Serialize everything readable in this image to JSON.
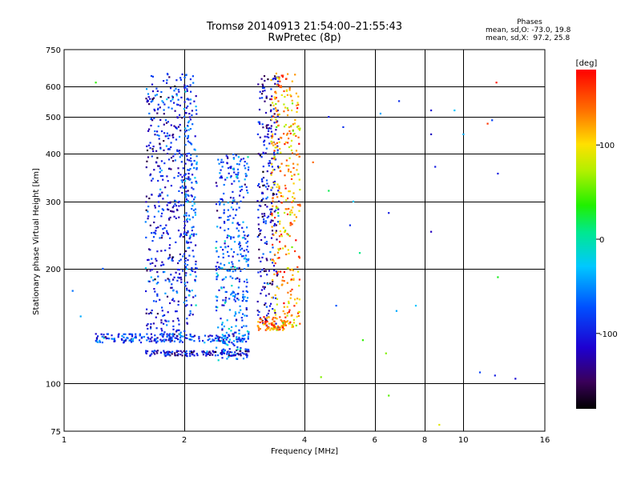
{
  "header": {
    "title": "Tromsø 20140913 21:54:00–21:55:43",
    "subtitle": "RwPretec (8p)"
  },
  "phase_info": {
    "heading": "Phases",
    "line1": "mean, sd,O: -73.0, 19.8",
    "line2": "mean, sd,X:  97.2, 25.8"
  },
  "colorbar": {
    "label": "[deg]",
    "tick_labels": [
      "100",
      "0",
      "-100"
    ],
    "range": [
      -180,
      180
    ]
  },
  "chart_data": {
    "type": "scatter",
    "title": "Tromsø 20140913 21:54:00–21:55:43",
    "subtitle": "RwPretec (8p)",
    "xlabel": "Frequency [MHz]",
    "ylabel": "Stationary phase Virtual Height [km]",
    "x_scale": "log",
    "y_scale": "log",
    "xlim": [
      1,
      16
    ],
    "ylim": [
      75,
      750
    ],
    "x_ticks": [
      1,
      2,
      4,
      6,
      8,
      10,
      16
    ],
    "y_ticks": [
      75,
      100,
      200,
      300,
      400,
      500,
      600,
      750
    ],
    "grid": true,
    "color_scale": "phase [deg], rainbow from -180 (black/purple) to 180 (red)",
    "clusters": [
      {
        "freq_range": [
          1.6,
          2.05
        ],
        "height_range": [
          130,
          650
        ],
        "phase_deg_mean": -100
      },
      {
        "freq_range": [
          2.0,
          2.15
        ],
        "height_range": [
          150,
          640
        ],
        "phase_deg_mean": -80
      },
      {
        "freq_range": [
          2.4,
          2.9
        ],
        "height_range": [
          115,
          400
        ],
        "phase_deg_mean": -70
      },
      {
        "freq_range": [
          3.05,
          3.45
        ],
        "height_range": [
          140,
          650
        ],
        "phase_deg_mean": -110
      },
      {
        "freq_range": [
          3.3,
          3.9
        ],
        "height_range": [
          140,
          650
        ],
        "phase_deg_mean": 120
      },
      {
        "freq_range": [
          1.6,
          2.9
        ],
        "height_range": [
          118,
          122
        ],
        "phase_deg_mean": -110
      },
      {
        "freq_range": [
          1.2,
          2.9
        ],
        "height_range": [
          128,
          135
        ],
        "phase_deg_mean": -80
      },
      {
        "freq_range": [
          3.05,
          3.6
        ],
        "height_range": [
          138,
          150
        ],
        "phase_deg_mean": 135
      }
    ],
    "scattered_points": [
      {
        "x": 4.6,
        "y": 500,
        "phase": -100
      },
      {
        "x": 5.0,
        "y": 470,
        "phase": -90
      },
      {
        "x": 4.2,
        "y": 380,
        "phase": 140
      },
      {
        "x": 4.6,
        "y": 320,
        "phase": 20
      },
      {
        "x": 5.3,
        "y": 300,
        "phase": -30
      },
      {
        "x": 6.5,
        "y": 280,
        "phase": -100
      },
      {
        "x": 6.2,
        "y": 510,
        "phase": -40
      },
      {
        "x": 6.9,
        "y": 550,
        "phase": -90
      },
      {
        "x": 8.3,
        "y": 520,
        "phase": -110
      },
      {
        "x": 8.3,
        "y": 450,
        "phase": -120
      },
      {
        "x": 8.3,
        "y": 250,
        "phase": -120
      },
      {
        "x": 8.5,
        "y": 370,
        "phase": -100
      },
      {
        "x": 9.5,
        "y": 520,
        "phase": -30
      },
      {
        "x": 10.0,
        "y": 450,
        "phase": -40
      },
      {
        "x": 11.5,
        "y": 480,
        "phase": 160
      },
      {
        "x": 11.8,
        "y": 490,
        "phase": -80
      },
      {
        "x": 12.1,
        "y": 615,
        "phase": 170
      },
      {
        "x": 12.2,
        "y": 355,
        "phase": -100
      },
      {
        "x": 12.2,
        "y": 190,
        "phase": 30
      },
      {
        "x": 12.0,
        "y": 105,
        "phase": -100
      },
      {
        "x": 13.5,
        "y": 103,
        "phase": -110
      },
      {
        "x": 11.0,
        "y": 107,
        "phase": -80
      },
      {
        "x": 6.5,
        "y": 93,
        "phase": 50
      },
      {
        "x": 8.7,
        "y": 78,
        "phase": 90
      },
      {
        "x": 5.9,
        "y": 75,
        "phase": 100
      },
      {
        "x": 4.4,
        "y": 104,
        "phase": 60
      },
      {
        "x": 5.5,
        "y": 220,
        "phase": 10
      },
      {
        "x": 5.2,
        "y": 260,
        "phase": -90
      },
      {
        "x": 4.8,
        "y": 160,
        "phase": -70
      },
      {
        "x": 6.8,
        "y": 155,
        "phase": -40
      },
      {
        "x": 7.6,
        "y": 160,
        "phase": -30
      },
      {
        "x": 6.4,
        "y": 120,
        "phase": 60
      },
      {
        "x": 5.6,
        "y": 130,
        "phase": 40
      },
      {
        "x": 1.2,
        "y": 615,
        "phase": 40
      },
      {
        "x": 1.25,
        "y": 200,
        "phase": -70
      },
      {
        "x": 1.05,
        "y": 175,
        "phase": -60
      },
      {
        "x": 1.1,
        "y": 150,
        "phase": -40
      }
    ]
  }
}
